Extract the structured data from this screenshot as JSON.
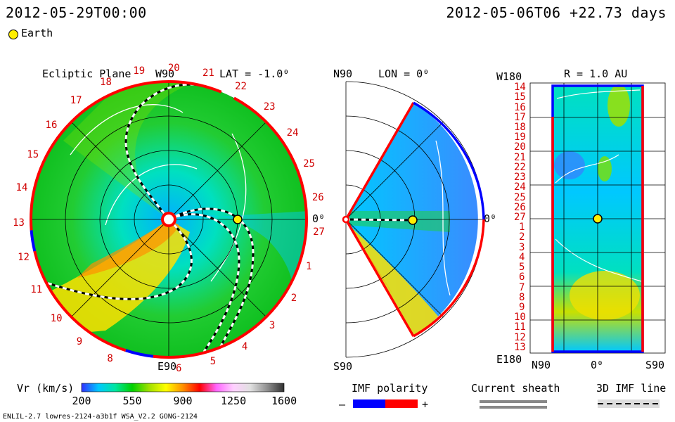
{
  "header": {
    "date_left": "2012-05-29T00:00",
    "date_right": "2012-05-06T06 +22.73 days",
    "legend_label": "Earth"
  },
  "footer": {
    "caption": "ENLIL-2.7 lowres-2124-a3b1f WSA_V2.2 GONG-2124"
  },
  "colors": {
    "background": "#ffffff",
    "accent_red": "#ff0000",
    "accent_blue": "#0000ff",
    "earth": "#ffee00"
  },
  "chart_data": [
    {
      "type": "heatmap",
      "panel": "ecliptic-plane",
      "title": "Ecliptic Plane",
      "latitude_label": "LAT = -1.0⁰",
      "top_label": "W90",
      "bottom_label": "E90",
      "right_label": "0⁰",
      "variable": "Vr (km/s)",
      "carrington_sectors": [
        "19",
        "20",
        "21",
        "22",
        "23",
        "24",
        "25",
        "26",
        "27",
        "1",
        "2",
        "3",
        "4",
        "5",
        "6",
        "8",
        "9",
        "10",
        "11",
        "12",
        "13",
        "14",
        "15",
        "16",
        "17",
        "18"
      ],
      "earth_position": {
        "longitude_deg": 0,
        "radius_au": 1.0
      }
    },
    {
      "type": "heatmap",
      "panel": "meridional-plane",
      "title": "N90",
      "longitude_label": "LON = 0⁰",
      "bottom_label": "S90",
      "right_label": "0⁰",
      "variable": "Vr (km/s)",
      "earth_position": {
        "latitude_deg": 0,
        "radius_au": 1.0
      }
    },
    {
      "type": "heatmap",
      "panel": "radial-sphere",
      "title": "R = 1.0 AU",
      "top_left_label": "W180",
      "bottom_left_label": "E180",
      "x_tick_labels": [
        "N90",
        "0⁰",
        "S90"
      ],
      "y_tick_labels": [
        "14",
        "15",
        "16",
        "17",
        "18",
        "19",
        "20",
        "21",
        "22",
        "23",
        "24",
        "25",
        "26",
        "27",
        "1",
        "2",
        "3",
        "4",
        "5",
        "6",
        "7",
        "8",
        "9",
        "10",
        "11",
        "12",
        "13"
      ],
      "variable": "Vr (km/s)"
    },
    {
      "type": "colorbar",
      "label": "Vr (km/s)",
      "ticks": [
        200,
        550,
        900,
        1250,
        1600
      ],
      "range": [
        200,
        1600
      ],
      "stops": [
        "#3030ff",
        "#00c8ff",
        "#00e6a0",
        "#00d000",
        "#a0e000",
        "#ffff00",
        "#ff9000",
        "#ff0000",
        "#ff66ff",
        "#ffd0ff",
        "#e0e0e0",
        "#909090",
        "#303030"
      ]
    }
  ],
  "imf_legend": {
    "title": "IMF polarity",
    "minus": "–",
    "plus": "+",
    "current_sheath": "Current sheath",
    "imf_line": "3D IMF line"
  }
}
